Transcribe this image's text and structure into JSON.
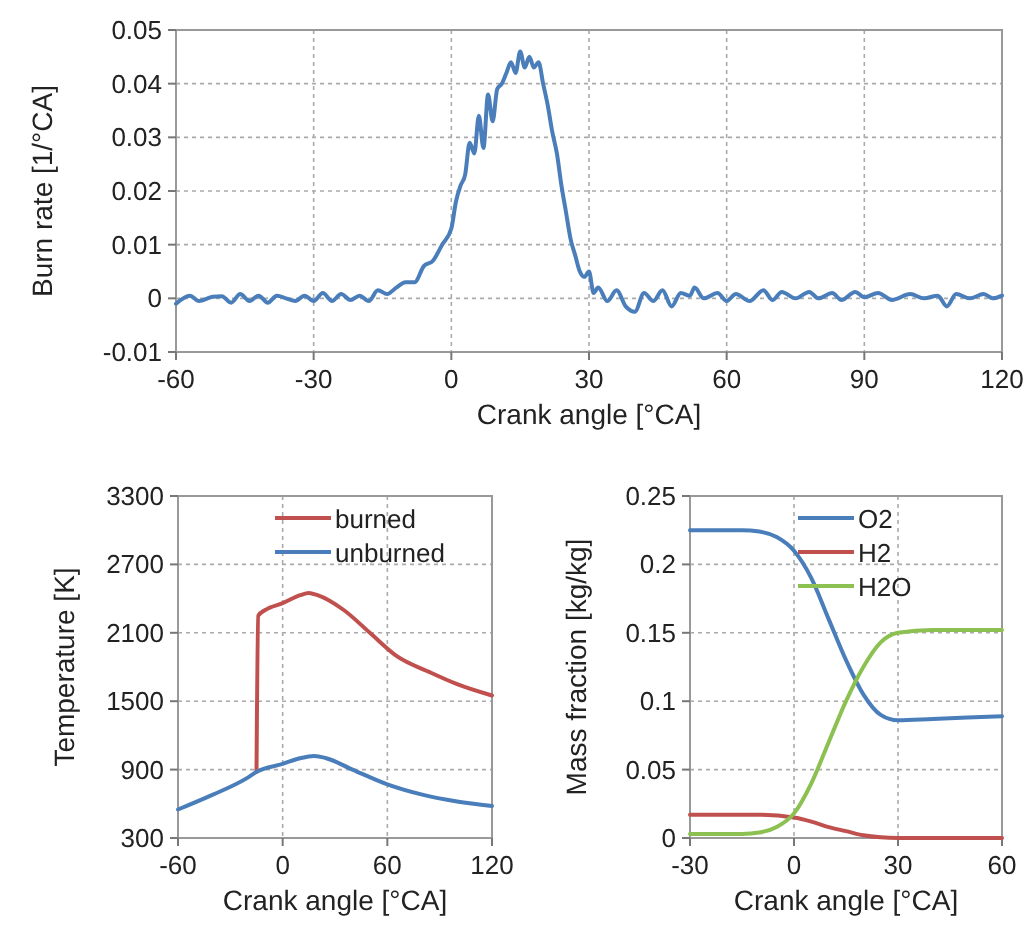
{
  "chart_data": [
    {
      "type": "line",
      "xlabel": "Crank angle [°CA]",
      "ylabel": "Burn rate [1/°CA]",
      "xlim": [
        -60,
        120
      ],
      "xticks": [
        -60,
        -30,
        0,
        30,
        60,
        90,
        120
      ],
      "ylim": [
        -0.01,
        0.05
      ],
      "yticks": [
        -0.01,
        0,
        0.01,
        0.02,
        0.03,
        0.04,
        0.05
      ],
      "grid": true,
      "legend": false,
      "series": [
        {
          "color": "#4a7ebb",
          "x": [
            -60,
            -57,
            -55,
            -52,
            -50,
            -48,
            -46,
            -44,
            -42,
            -40,
            -38,
            -36,
            -34,
            -32,
            -30,
            -28,
            -26,
            -24,
            -22,
            -20,
            -18,
            -16,
            -14,
            -12,
            -10,
            -8,
            -6,
            -4,
            -2,
            0,
            1,
            2,
            3,
            4,
            5,
            6,
            7,
            8,
            9,
            10,
            11,
            12,
            13,
            14,
            15,
            16,
            17,
            18,
            19,
            20,
            21,
            22,
            23,
            24,
            25,
            26,
            27,
            28,
            29,
            30,
            31,
            32,
            34,
            36,
            38,
            40,
            42,
            44,
            46,
            48,
            50,
            52,
            53,
            55,
            58,
            60,
            62,
            65,
            68,
            70,
            72,
            75,
            78,
            80,
            83,
            85,
            88,
            90,
            93,
            96,
            100,
            103,
            106,
            108,
            110,
            113,
            116,
            118,
            120
          ],
          "values": [
            -0.001,
            0.0005,
            -0.0005,
            0.0003,
            0.0004,
            -0.0008,
            0.0008,
            -0.0005,
            0.0005,
            -0.0008,
            0.0005,
            0,
            -0.0005,
            0.0005,
            -0.0005,
            0.001,
            -0.0005,
            0.0008,
            -0.0003,
            0.0005,
            -0.0005,
            0.0015,
            0.0008,
            0.002,
            0.003,
            0.003,
            0.006,
            0.007,
            0.01,
            0.013,
            0.018,
            0.021,
            0.023,
            0.029,
            0.027,
            0.034,
            0.028,
            0.038,
            0.033,
            0.039,
            0.04,
            0.042,
            0.044,
            0.042,
            0.046,
            0.043,
            0.045,
            0.043,
            0.044,
            0.04,
            0.036,
            0.031,
            0.027,
            0.021,
            0.016,
            0.011,
            0.008,
            0.005,
            0.004,
            0.005,
            0.001,
            0.002,
            -0.0005,
            0.0015,
            -0.0015,
            -0.0025,
            0.001,
            -0.0005,
            0.0015,
            -0.0015,
            0.001,
            0.0005,
            0.002,
            0,
            0.001,
            -0.0005,
            0.0008,
            -0.0005,
            0.0015,
            -0.0003,
            0.0012,
            0,
            0.0012,
            0,
            0.001,
            -0.0003,
            0.0012,
            0.0002,
            0.001,
            -0.0003,
            0.0008,
            0,
            0.0005,
            -0.0015,
            0.0008,
            0,
            0.0008,
            0,
            0.0005
          ]
        }
      ]
    },
    {
      "type": "line",
      "xlabel": "Crank angle [°CA]",
      "ylabel": "Temperature [K]",
      "xlim": [
        -60,
        120
      ],
      "xticks": [
        -60,
        0,
        60,
        120
      ],
      "ylim": [
        300,
        3300
      ],
      "yticks": [
        300,
        900,
        1500,
        2100,
        2700,
        3300
      ],
      "grid": true,
      "legend": "top",
      "series": [
        {
          "name": "burned",
          "color": "#c0504d",
          "x": [
            -15,
            -14,
            -10,
            0,
            10,
            15,
            20,
            35,
            50,
            65,
            85,
            100,
            120
          ],
          "values": [
            880,
            2250,
            2300,
            2360,
            2430,
            2450,
            2430,
            2300,
            2100,
            1900,
            1750,
            1650,
            1550
          ]
        },
        {
          "name": "unburned",
          "color": "#4a7ebb",
          "x": [
            -60,
            -40,
            -20,
            -15,
            0,
            10,
            18,
            25,
            40,
            60,
            80,
            100,
            120
          ],
          "values": [
            550,
            680,
            830,
            880,
            950,
            1000,
            1020,
            1000,
            900,
            770,
            680,
            620,
            580
          ]
        }
      ]
    },
    {
      "type": "line",
      "xlabel": "Crank angle [°CA]",
      "ylabel": "Mass fraction [kg/kg]",
      "xlim": [
        -30,
        60
      ],
      "xticks": [
        -30,
        0,
        30,
        60
      ],
      "ylim": [
        0,
        0.25
      ],
      "yticks": [
        0,
        0.05,
        0.1,
        0.15,
        0.2,
        0.25
      ],
      "grid": true,
      "legend": "top right",
      "series": [
        {
          "name": "O2",
          "color": "#4a7ebb",
          "x": [
            -30,
            -15,
            -10,
            -5,
            0,
            5,
            10,
            15,
            20,
            25,
            30,
            40,
            60
          ],
          "values": [
            0.225,
            0.225,
            0.224,
            0.22,
            0.21,
            0.19,
            0.16,
            0.13,
            0.105,
            0.09,
            0.086,
            0.087,
            0.089
          ]
        },
        {
          "name": "H2",
          "color": "#c0504d",
          "x": [
            -30,
            -10,
            0,
            5,
            10,
            15,
            20,
            25,
            30,
            60
          ],
          "values": [
            0.017,
            0.017,
            0.015,
            0.012,
            0.008,
            0.005,
            0.002,
            0.0005,
            0,
            0
          ]
        },
        {
          "name": "H2O",
          "color": "#8cc152",
          "x": [
            -30,
            -15,
            -10,
            -5,
            0,
            5,
            10,
            15,
            20,
            25,
            30,
            40,
            60
          ],
          "values": [
            0.003,
            0.003,
            0.004,
            0.008,
            0.018,
            0.04,
            0.07,
            0.1,
            0.125,
            0.143,
            0.15,
            0.152,
            0.152
          ]
        }
      ]
    }
  ]
}
